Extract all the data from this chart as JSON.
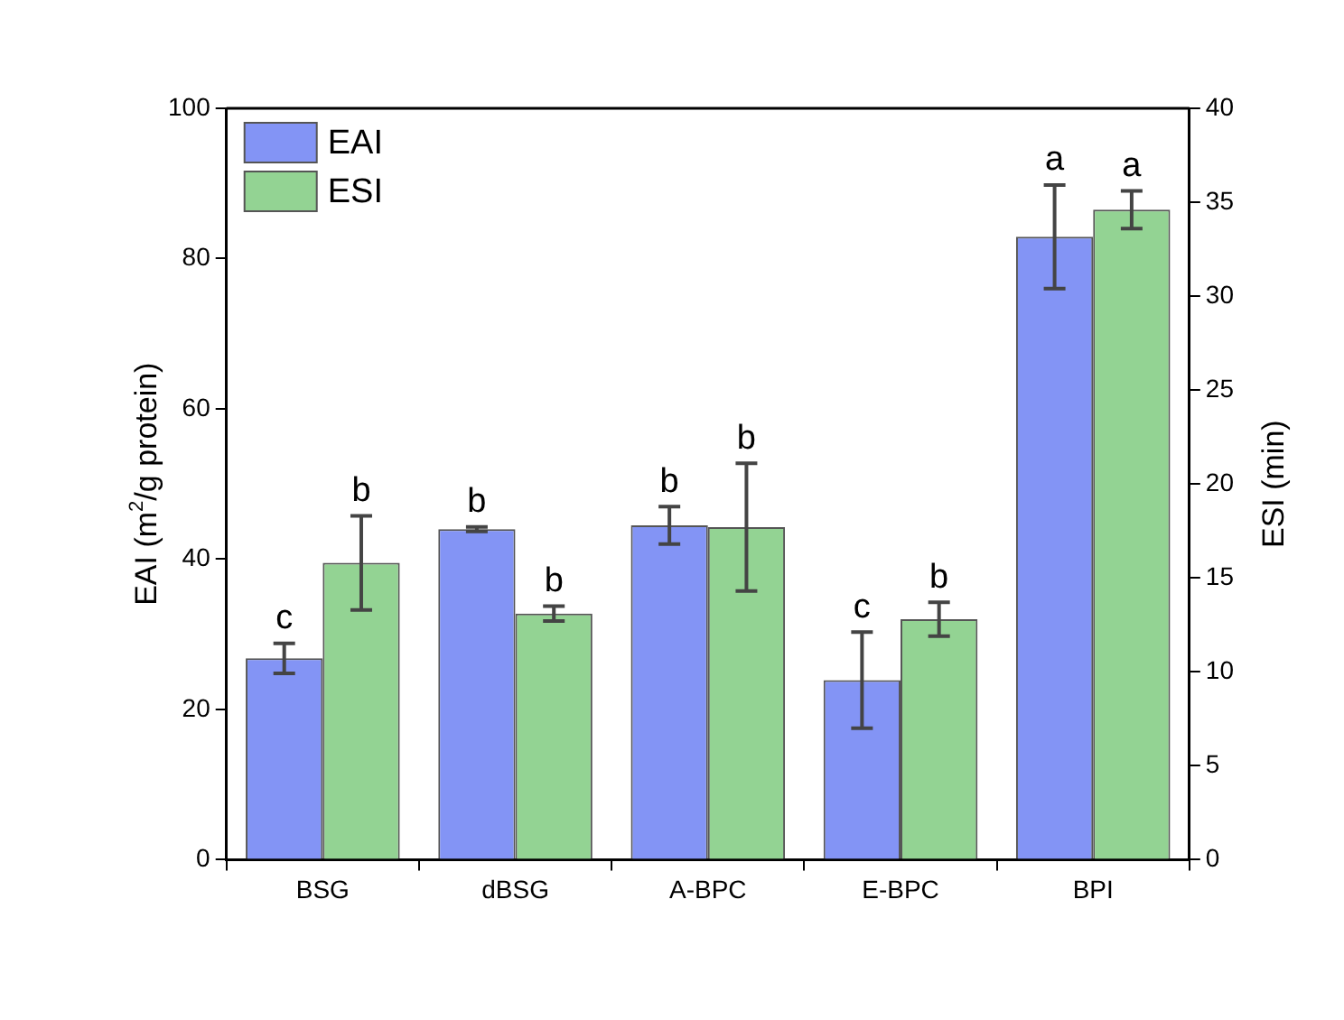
{
  "chart_data": {
    "type": "bar",
    "categories": [
      "BSG",
      "dBSG",
      "A-BPC",
      "E-BPC",
      "BPI"
    ],
    "ylabel": "EAI (m$^{2}$/g protein)",
    "y2label": "ESI (min)",
    "ylim": [
      0,
      100
    ],
    "yticks": [
      0,
      20,
      40,
      60,
      80,
      100
    ],
    "y2lim": [
      0,
      40
    ],
    "y2ticks": [
      0,
      5,
      10,
      15,
      20,
      25,
      30,
      35,
      40
    ],
    "grid": false,
    "legend": "top left",
    "series": [
      {
        "name": "EAI",
        "color": "#8394f5",
        "values": [
          26.8,
          44,
          44.5,
          23.9,
          82.9
        ],
        "errors": [
          2,
          0.3,
          2.5,
          6.4,
          6.9
        ],
        "value_labels": [
          "c",
          "b",
          "b",
          "c",
          "a"
        ]
      },
      {
        "name": "ESI",
        "color": "#93d393",
        "axis": "y2",
        "values": [
          15.8,
          13.1,
          17.7,
          12.8,
          34.6
        ],
        "errors": [
          2.5,
          0.4,
          3.4,
          0.9,
          1
        ],
        "value_labels": [
          "b",
          "b",
          "b",
          "b",
          "a"
        ]
      }
    ]
  }
}
